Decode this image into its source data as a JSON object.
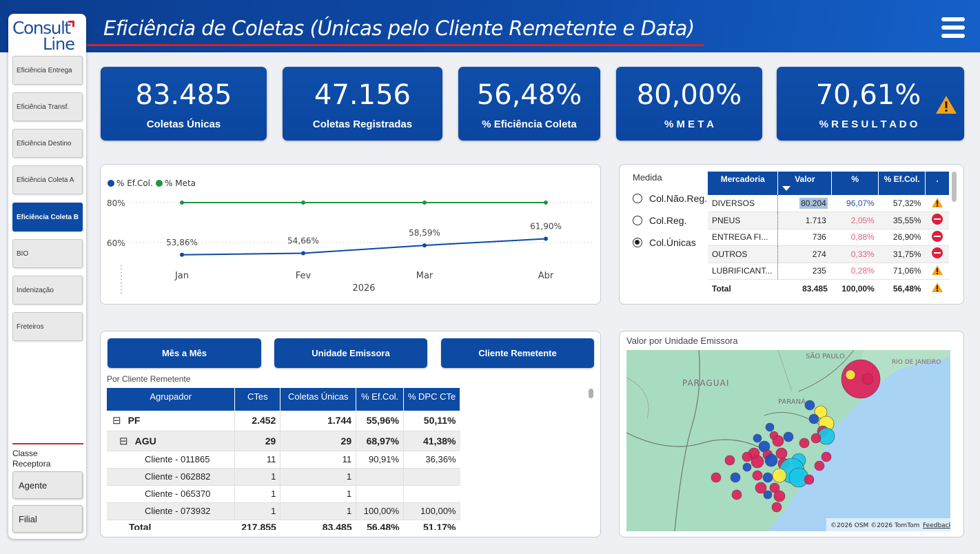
{
  "header": {
    "title": "Eficiência de Coletas (Únicas pelo Cliente Remetente e Data)"
  },
  "logo": {
    "line1": "Consult",
    "line2": "Line"
  },
  "sidebar": {
    "items": [
      {
        "label": "Eficiência Entrega"
      },
      {
        "label": "Eficiência Transf."
      },
      {
        "label": "Eficiência Destino"
      },
      {
        "label": "Eficiência Coleta A"
      },
      {
        "label": "Eficiência Coleta B"
      },
      {
        "label": "BIO"
      },
      {
        "label": "Indenização"
      },
      {
        "label": "Freteiros"
      }
    ],
    "classe_label": "Classe Receptora",
    "classe_buttons": [
      {
        "label": "Agente"
      },
      {
        "label": "Filial"
      }
    ]
  },
  "kpis": [
    {
      "value": "83.485",
      "label": "Coletas Únicas"
    },
    {
      "value": "47.156",
      "label": "Coletas Registradas"
    },
    {
      "value": "56,48%",
      "label": "% Eficiência Coleta"
    },
    {
      "value": "80,00%",
      "label": "% M E T A"
    },
    {
      "value": "70,61%",
      "label": "% R E S U L T A D O"
    }
  ],
  "chart_data": {
    "type": "line",
    "categories": [
      "Jan",
      "Fev",
      "Mar",
      "Abr"
    ],
    "xlabel": "2026",
    "series": [
      {
        "name": "% Ef.Col.",
        "values": [
          53.86,
          54.66,
          58.59,
          61.9
        ],
        "labels": [
          "53,86%",
          "54,66%",
          "58,59%",
          "61,90%"
        ],
        "color": "#0d4aa3"
      },
      {
        "name": "% Meta",
        "values": [
          80,
          80,
          80,
          80
        ],
        "color": "#1a9641"
      }
    ],
    "yticks": [
      {
        "value": 80,
        "label": "80%"
      },
      {
        "value": 60,
        "label": "60%"
      }
    ],
    "legend": "top-left"
  },
  "medida": {
    "title": "Medida",
    "options": [
      {
        "label": "Col.Não.Reg.",
        "selected": false
      },
      {
        "label": "Col.Reg.",
        "selected": false
      },
      {
        "label": "Col.Únicas",
        "selected": true
      }
    ]
  },
  "mercadoria": {
    "headers": [
      "Mercadoria",
      "Valor",
      "%",
      "% Ef.Col.",
      "."
    ],
    "rows": [
      {
        "name": "DIVERSOS",
        "valor": "80.204",
        "pct": "96,07%",
        "ef": "57,32%",
        "status": "warning",
        "pct_color": "#1d4f9c"
      },
      {
        "name": "PNEUS",
        "valor": "1.713",
        "pct": "2,05%",
        "ef": "35,55%",
        "status": "stop",
        "pct_color": "#e06080"
      },
      {
        "name": "ENTREGA FI...",
        "valor": "736",
        "pct": "0,88%",
        "ef": "26,90%",
        "status": "stop",
        "pct_color": "#e06080"
      },
      {
        "name": "OUTROS",
        "valor": "274",
        "pct": "0,33%",
        "ef": "31,75%",
        "status": "stop",
        "pct_color": "#e06080"
      },
      {
        "name": "LUBRIFICANT...",
        "valor": "235",
        "pct": "0,28%",
        "ef": "71,06%",
        "status": "warning",
        "pct_color": "#e06080"
      }
    ],
    "total": {
      "name": "Total",
      "valor": "83.485",
      "pct": "100,00%",
      "ef": "56,48%",
      "status": "warning"
    }
  },
  "view_buttons": [
    {
      "label": "Mês a Mês"
    },
    {
      "label": "Unidade Emissora"
    },
    {
      "label": "Cliente Remetente"
    }
  ],
  "cliente_table": {
    "caption": "Por Cliente Remetente",
    "headers": [
      "Agrupador",
      "CTes",
      "Coletas Únicas",
      "% Ef.Col.",
      "% DPC CTe"
    ],
    "rows": [
      {
        "level": 0,
        "expander": "⊟",
        "name": "PF",
        "ctes": "2.452",
        "coletas": "1.744",
        "ef": "55,96%",
        "dpc": "50,11%"
      },
      {
        "level": 1,
        "expander": "⊟",
        "name": "AGU",
        "ctes": "29",
        "coletas": "29",
        "ef": "68,97%",
        "dpc": "41,38%"
      },
      {
        "level": 2,
        "expander": "",
        "name": "Cliente - 011865",
        "ctes": "11",
        "coletas": "11",
        "ef": "90,91%",
        "dpc": "36,36%"
      },
      {
        "level": 2,
        "expander": "",
        "name": "Cliente - 062882",
        "ctes": "1",
        "coletas": "1",
        "ef": "",
        "dpc": ""
      },
      {
        "level": 2,
        "expander": "",
        "name": "Cliente - 065370",
        "ctes": "1",
        "coletas": "1",
        "ef": "",
        "dpc": ""
      },
      {
        "level": 2,
        "expander": "",
        "name": "Cliente - 073932",
        "ctes": "1",
        "coletas": "1",
        "ef": "100,00%",
        "dpc": "100,00%"
      }
    ],
    "total": {
      "name": "Total",
      "ctes": "217.855",
      "coletas": "83.485",
      "ef": "56,48%",
      "dpc": "51,17%"
    }
  },
  "map": {
    "title": "Valor por Unidade Emissora",
    "labels": [
      "SÃO PAULO",
      "RIO DE JANEIRO",
      "PARAGUAI",
      "PARANÁ"
    ],
    "attribution": "©2026 OSM  ©2026 TomTom",
    "feedback": "Feedback"
  },
  "colors": {
    "primary": "#0d4aa3",
    "meta": "#1a9641",
    "accent_red": "#d7232a",
    "warning": "#f3a21c"
  }
}
